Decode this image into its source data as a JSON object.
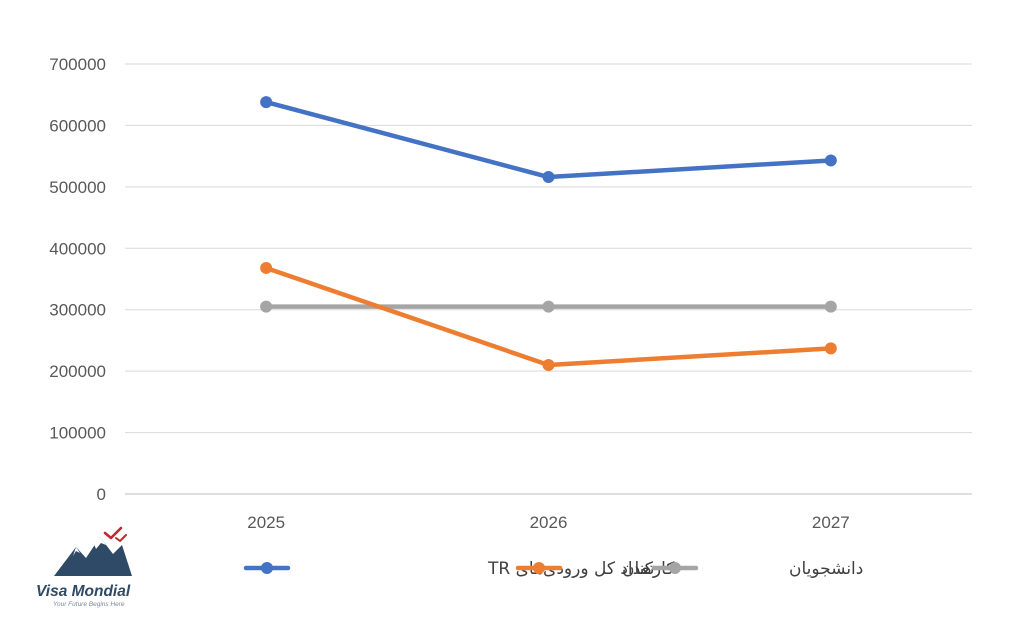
{
  "chart_data": {
    "type": "line",
    "categories": [
      "2025",
      "2026",
      "2027"
    ],
    "ylim": [
      0,
      700000
    ],
    "yticks": [
      "0",
      "100000",
      "200000",
      "300000",
      "400000",
      "500000",
      "600000",
      "700000"
    ],
    "grid": true,
    "legend_position": "bottom",
    "title": "",
    "xlabel": "",
    "ylabel": "",
    "series": [
      {
        "name": "تعداد کل ورودی‌های TR",
        "values": [
          638000,
          516000,
          543000
        ],
        "color": "#4472C4"
      },
      {
        "name": "کارکنان",
        "values": [
          368000,
          210000,
          237000
        ],
        "color": "#ED7D31"
      },
      {
        "name": "دانشجویان",
        "values": [
          305000,
          305000,
          305000
        ],
        "color": "#A5A5A5"
      }
    ]
  },
  "logo": {
    "name": "Visa Mondial",
    "tagline": "Your Future Begins Here"
  }
}
